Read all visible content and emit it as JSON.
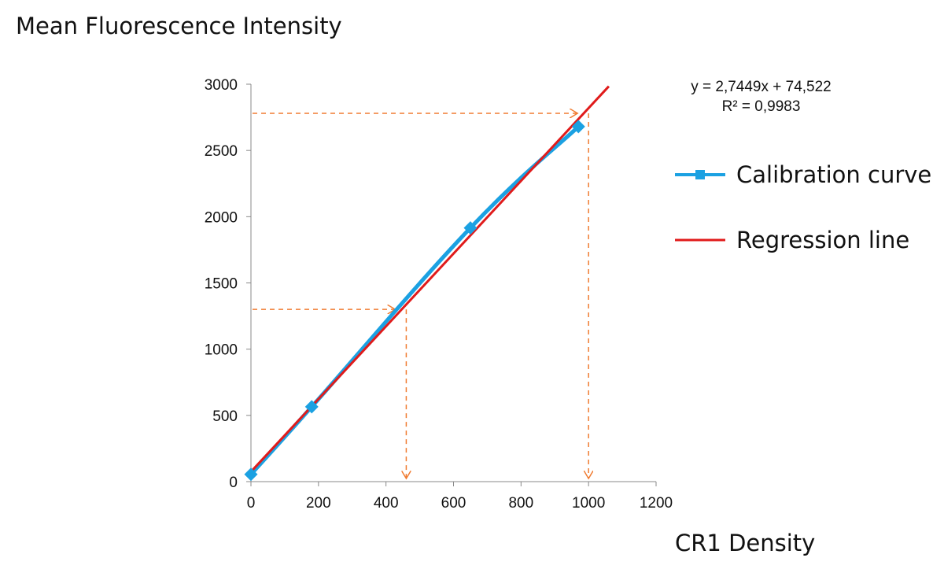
{
  "chart_data": {
    "type": "line",
    "title": "",
    "xlabel": "CR1 Density",
    "ylabel": "Mean Fluorescence Intensity",
    "xlim": [
      0,
      1200
    ],
    "ylim": [
      0,
      3000
    ],
    "x_ticks": [
      0,
      200,
      400,
      600,
      800,
      1000,
      1200
    ],
    "y_ticks": [
      0,
      500,
      1000,
      1500,
      2000,
      2500,
      3000
    ],
    "grid": false,
    "legend_position": "right",
    "series": [
      {
        "name": "Calibration curve",
        "color": "#1ba1e2",
        "marker": "square",
        "x": [
          0,
          180,
          650,
          970
        ],
        "y": [
          55,
          565,
          1915,
          2680
        ]
      },
      {
        "name": "Regression line",
        "color": "#e01b1b",
        "marker": "none",
        "x": [
          0,
          1060
        ],
        "y": [
          74.522,
          2984.1
        ]
      }
    ],
    "trendline": {
      "equation": "y = 2,7449x + 74,522",
      "r_squared": "R² = 0,9983"
    },
    "annotations": [
      {
        "type": "dashed-arrow-path",
        "color": "#f07c32",
        "y_level": 1300,
        "x_level": 460
      },
      {
        "type": "dashed-arrow-path",
        "color": "#f07c32",
        "y_level": 2780,
        "x_level": 1000
      }
    ]
  }
}
